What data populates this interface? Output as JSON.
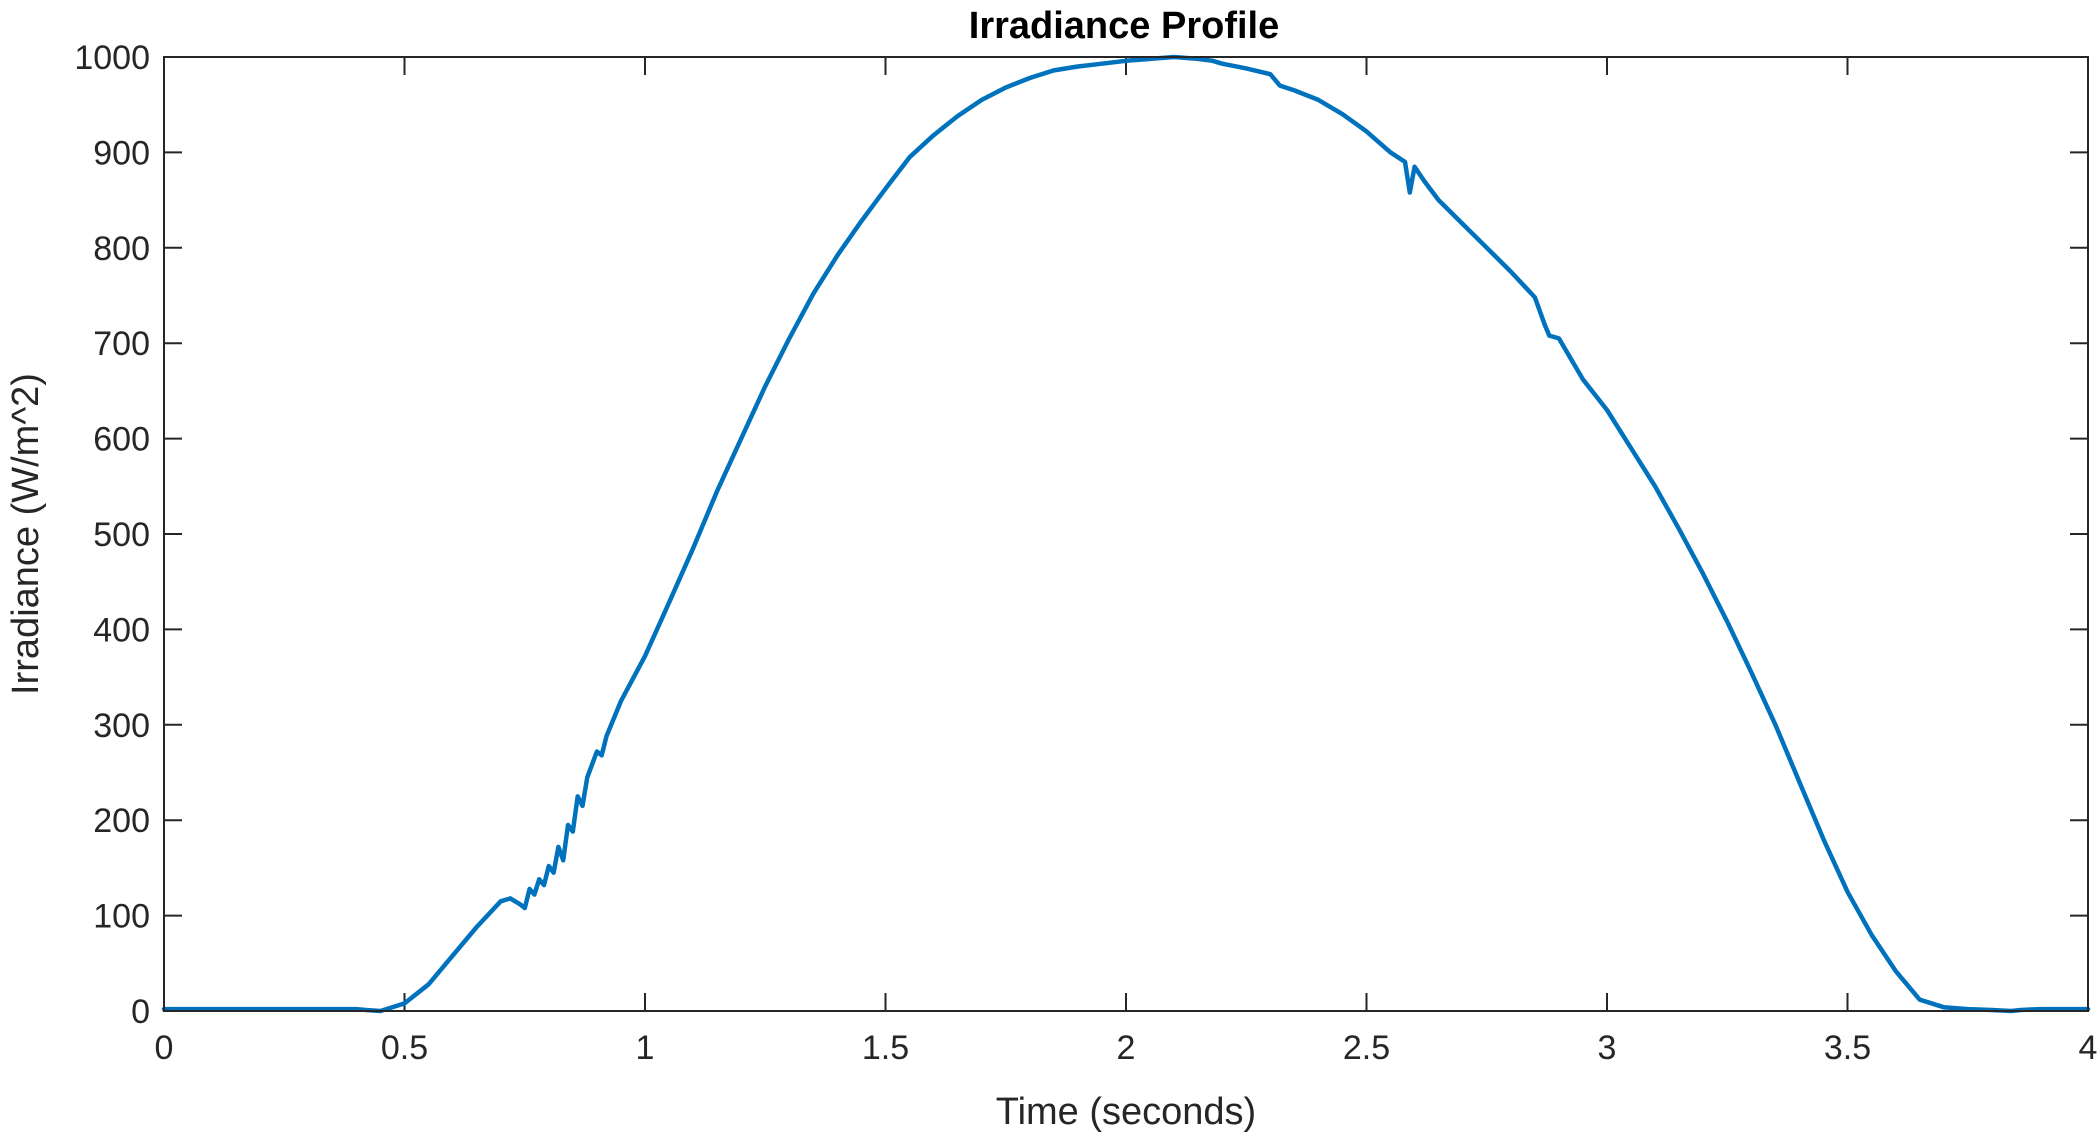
{
  "chart_data": {
    "type": "line",
    "title": "Irradiance Profile",
    "xlabel": "Time (seconds)",
    "ylabel": "Irradiance (W/m^2)",
    "xlim": [
      0,
      4
    ],
    "ylim": [
      0,
      1000
    ],
    "xticks": [
      0,
      0.5,
      1,
      1.5,
      2,
      2.5,
      3,
      3.5,
      4
    ],
    "xtick_labels": [
      "0",
      "0.5",
      "1",
      "1.5",
      "2",
      "2.5",
      "3",
      "3.5",
      "4"
    ],
    "yticks": [
      0,
      100,
      200,
      300,
      400,
      500,
      600,
      700,
      800,
      900,
      1000
    ],
    "ytick_labels": [
      "0",
      "100",
      "200",
      "300",
      "400",
      "500",
      "600",
      "700",
      "800",
      "900",
      "1000"
    ],
    "grid": false,
    "series": [
      {
        "color": "#0072BD",
        "x": [
          0,
          0.1,
          0.2,
          0.3,
          0.4,
          0.42,
          0.45,
          0.5,
          0.55,
          0.6,
          0.65,
          0.7,
          0.72,
          0.74,
          0.75,
          0.76,
          0.77,
          0.78,
          0.79,
          0.8,
          0.81,
          0.82,
          0.83,
          0.84,
          0.85,
          0.86,
          0.87,
          0.88,
          0.9,
          0.91,
          0.92,
          0.95,
          1.0,
          1.05,
          1.1,
          1.15,
          1.2,
          1.25,
          1.3,
          1.35,
          1.4,
          1.45,
          1.5,
          1.55,
          1.6,
          1.65,
          1.7,
          1.75,
          1.8,
          1.85,
          1.9,
          1.95,
          2.0,
          2.05,
          2.1,
          2.15,
          2.18,
          2.2,
          2.25,
          2.3,
          2.32,
          2.35,
          2.4,
          2.45,
          2.5,
          2.55,
          2.58,
          2.59,
          2.6,
          2.62,
          2.65,
          2.7,
          2.75,
          2.8,
          2.85,
          2.87,
          2.88,
          2.9,
          2.95,
          3.0,
          3.05,
          3.1,
          3.15,
          3.2,
          3.25,
          3.3,
          3.35,
          3.4,
          3.45,
          3.5,
          3.55,
          3.6,
          3.65,
          3.7,
          3.75,
          3.8,
          3.84,
          3.86,
          3.9,
          3.95,
          4.0
        ],
        "y": [
          2,
          2,
          2,
          2,
          2,
          1,
          0,
          8,
          28,
          58,
          88,
          115,
          118,
          112,
          108,
          128,
          122,
          138,
          132,
          152,
          145,
          172,
          158,
          195,
          188,
          225,
          215,
          245,
          272,
          268,
          288,
          325,
          372,
          428,
          485,
          545,
          600,
          655,
          705,
          752,
          792,
          828,
          862,
          895,
          918,
          938,
          955,
          968,
          978,
          986,
          990,
          993,
          996,
          998,
          1000,
          998,
          996,
          993,
          988,
          982,
          970,
          965,
          955,
          940,
          922,
          900,
          890,
          858,
          885,
          870,
          850,
          825,
          800,
          775,
          748,
          720,
          708,
          705,
          662,
          630,
          590,
          550,
          505,
          458,
          408,
          355,
          300,
          240,
          180,
          125,
          80,
          42,
          12,
          4,
          2,
          1,
          0,
          1,
          2,
          2,
          2
        ]
      }
    ]
  }
}
